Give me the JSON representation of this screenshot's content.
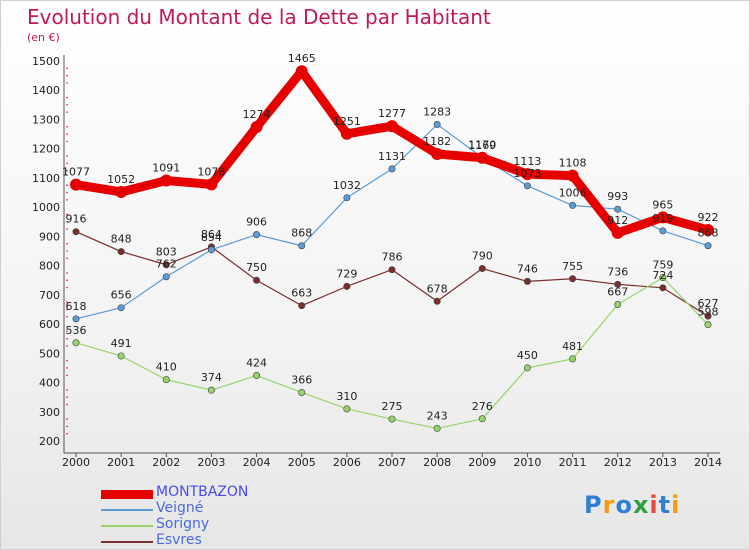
{
  "title": "Evolution du Montant de la Dette par Habitant",
  "subtitle": "(en €)",
  "logo": {
    "letters": [
      "P",
      "r",
      "o",
      "x",
      "i",
      "t",
      "i"
    ],
    "colors": [
      "#2f7fd4",
      "#f39c12",
      "#2f7fd4",
      "#2e9e44",
      "#e74c3c",
      "#2f7fd4",
      "#f39c12"
    ]
  },
  "chart_data": {
    "type": "line",
    "title": "Evolution du Montant de la Dette par Habitant",
    "subtitle": "(en €)",
    "categories": [
      "2000",
      "2001",
      "2002",
      "2003",
      "2004",
      "2005",
      "2006",
      "2007",
      "2008",
      "2009",
      "2010",
      "2011",
      "2012",
      "2013",
      "2014"
    ],
    "ylim": [
      200,
      1500
    ],
    "yticks": [
      200,
      300,
      400,
      500,
      600,
      700,
      800,
      900,
      1000,
      1100,
      1200,
      1300,
      1400,
      1500
    ],
    "grid": false,
    "legend": "bottom-left",
    "series": [
      {
        "name": "MONTBAZON",
        "color": "#e60000",
        "width": 9,
        "values": [
          1077,
          1052,
          1091,
          1078,
          1274,
          1465,
          1251,
          1277,
          1182,
          1169,
          1113,
          1108,
          912,
          965,
          922
        ],
        "labels": [
          "1077",
          "1052",
          "1091",
          "1078",
          "1274",
          "1465",
          "1251",
          "1277",
          "1182",
          "1169",
          "1113",
          "1108",
          "912",
          "965",
          "922"
        ]
      },
      {
        "name": "Veigné",
        "color": "#5b9bd5",
        "width": 1.2,
        "values": [
          618,
          656,
          762,
          854,
          906,
          868,
          1032,
          1131,
          1283,
          1170,
          1073,
          1006,
          993,
          919,
          868
        ],
        "labels": [
          "618",
          "656",
          "762",
          "854",
          "906",
          "868",
          "1032",
          "1131",
          "1283",
          "1170",
          "1073",
          "1006",
          "993",
          "919",
          "868"
        ]
      },
      {
        "name": "Sorigny",
        "color": "#96d46a",
        "width": 1.2,
        "values": [
          536,
          491,
          410,
          374,
          424,
          366,
          310,
          275,
          243,
          276,
          450,
          481,
          667,
          759,
          598
        ],
        "labels": [
          "536",
          "491",
          "410",
          "374",
          "424",
          "366",
          "310",
          "275",
          "243",
          "276",
          "450",
          "481",
          "667",
          "759",
          "598"
        ]
      },
      {
        "name": "Esvres",
        "color": "#7a2e2e",
        "width": 1.2,
        "values": [
          916,
          848,
          803,
          864,
          750,
          663,
          729,
          786,
          678,
          790,
          746,
          755,
          736,
          724,
          627
        ],
        "labels": [
          "916",
          "848",
          "803",
          "864",
          "750",
          "663",
          "729",
          "786",
          "678",
          "790",
          "746",
          "755",
          "736",
          "724",
          "627"
        ]
      }
    ]
  }
}
